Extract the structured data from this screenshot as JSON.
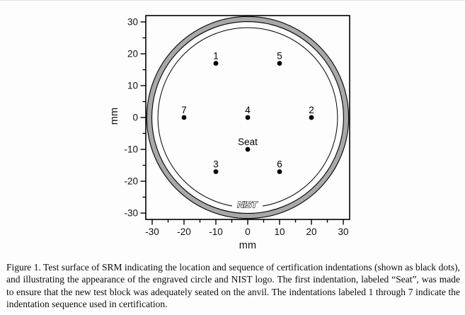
{
  "figure": {
    "caption": "Figure 1.  Test surface of SRM indicating the location and sequence of certification indentations (shown as black dots), and illustrating the appearance of the engraved circle and NIST logo.  The first indentation, labeled “Seat”, was made to ensure that the new test block was adequately seated on the anvil.  The indentations labeled 1 through 7 indicate the indentation sequence used in certification."
  },
  "chart_data": {
    "type": "scatter",
    "title": "",
    "xlabel": "mm",
    "ylabel": "mm",
    "xlim": [
      -32,
      32
    ],
    "ylim": [
      -32,
      32
    ],
    "x_major_ticks": [
      -30,
      -20,
      -10,
      0,
      10,
      20,
      30
    ],
    "y_major_ticks": [
      -30,
      -20,
      -10,
      0,
      10,
      20,
      30
    ],
    "minor_tick_step": 5,
    "grid": false,
    "legend": "none",
    "points": [
      {
        "label": "1",
        "x": -10,
        "y": 17
      },
      {
        "label": "2",
        "x": 20,
        "y": 0
      },
      {
        "label": "3",
        "x": -10,
        "y": -17
      },
      {
        "label": "4",
        "x": 0,
        "y": 0
      },
      {
        "label": "5",
        "x": 10,
        "y": 17
      },
      {
        "label": "6",
        "x": 10,
        "y": -17
      },
      {
        "label": "7",
        "x": -20,
        "y": 0
      },
      {
        "label": "Seat",
        "x": 0,
        "y": -10
      }
    ],
    "engraved_ring": {
      "outer_r_mm": 31.7,
      "inner_r_mm": 30.1,
      "fill": "#a8a8a8"
    },
    "engraved_circle": {
      "r_mm": 28.2
    },
    "logo_text": "NIST",
    "colors": {
      "dots": "#000000",
      "lines": "#000000",
      "ring_fill": "#a8a8a8",
      "background": "#ffffff"
    }
  }
}
